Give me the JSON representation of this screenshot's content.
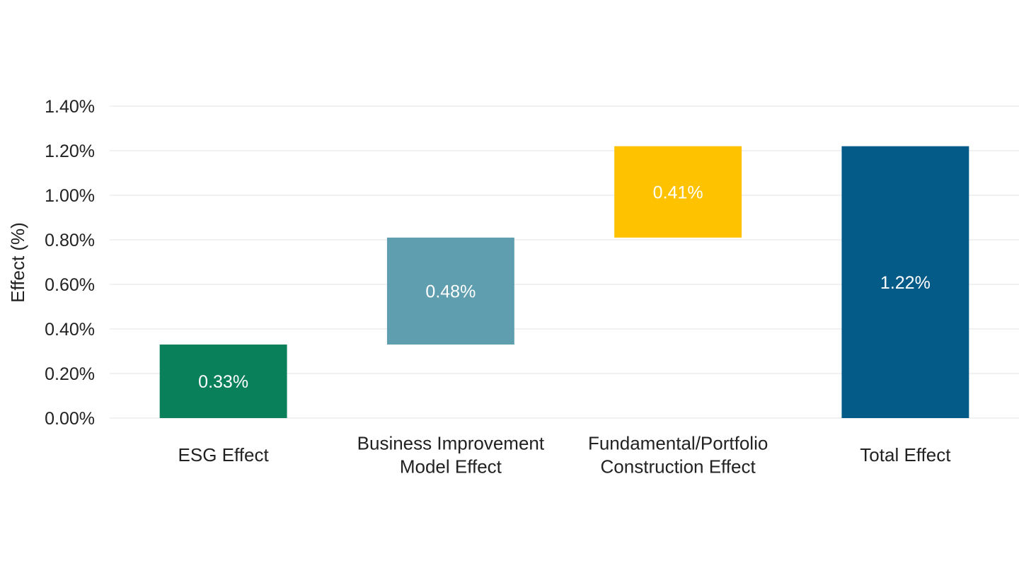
{
  "chart_data": {
    "type": "bar",
    "subtype": "waterfall",
    "title": "",
    "xlabel": "",
    "ylabel": "Effect (%)",
    "ylim": [
      0,
      1.4
    ],
    "yticks": [
      "0.00%",
      "0.20%",
      "0.40%",
      "0.60%",
      "0.80%",
      "1.00%",
      "1.20%",
      "1.40%"
    ],
    "grid": true,
    "legend": "none",
    "categories": [
      [
        "ESG Effect"
      ],
      [
        "Business Improvement",
        "Model Effect"
      ],
      [
        "Fundamental/Portfolio",
        "Construction Effect"
      ],
      [
        "Total Effect"
      ]
    ],
    "bars": [
      {
        "base": 0.0,
        "value": 0.33,
        "label": "0.33%",
        "color": "#097F5A"
      },
      {
        "base": 0.33,
        "value": 0.48,
        "label": "0.48%",
        "color": "#5F9EAF"
      },
      {
        "base": 0.81,
        "value": 0.41,
        "label": "0.41%",
        "color": "#FEC200"
      },
      {
        "base": 0.0,
        "value": 1.22,
        "label": "1.22%",
        "color": "#045B88"
      }
    ]
  }
}
